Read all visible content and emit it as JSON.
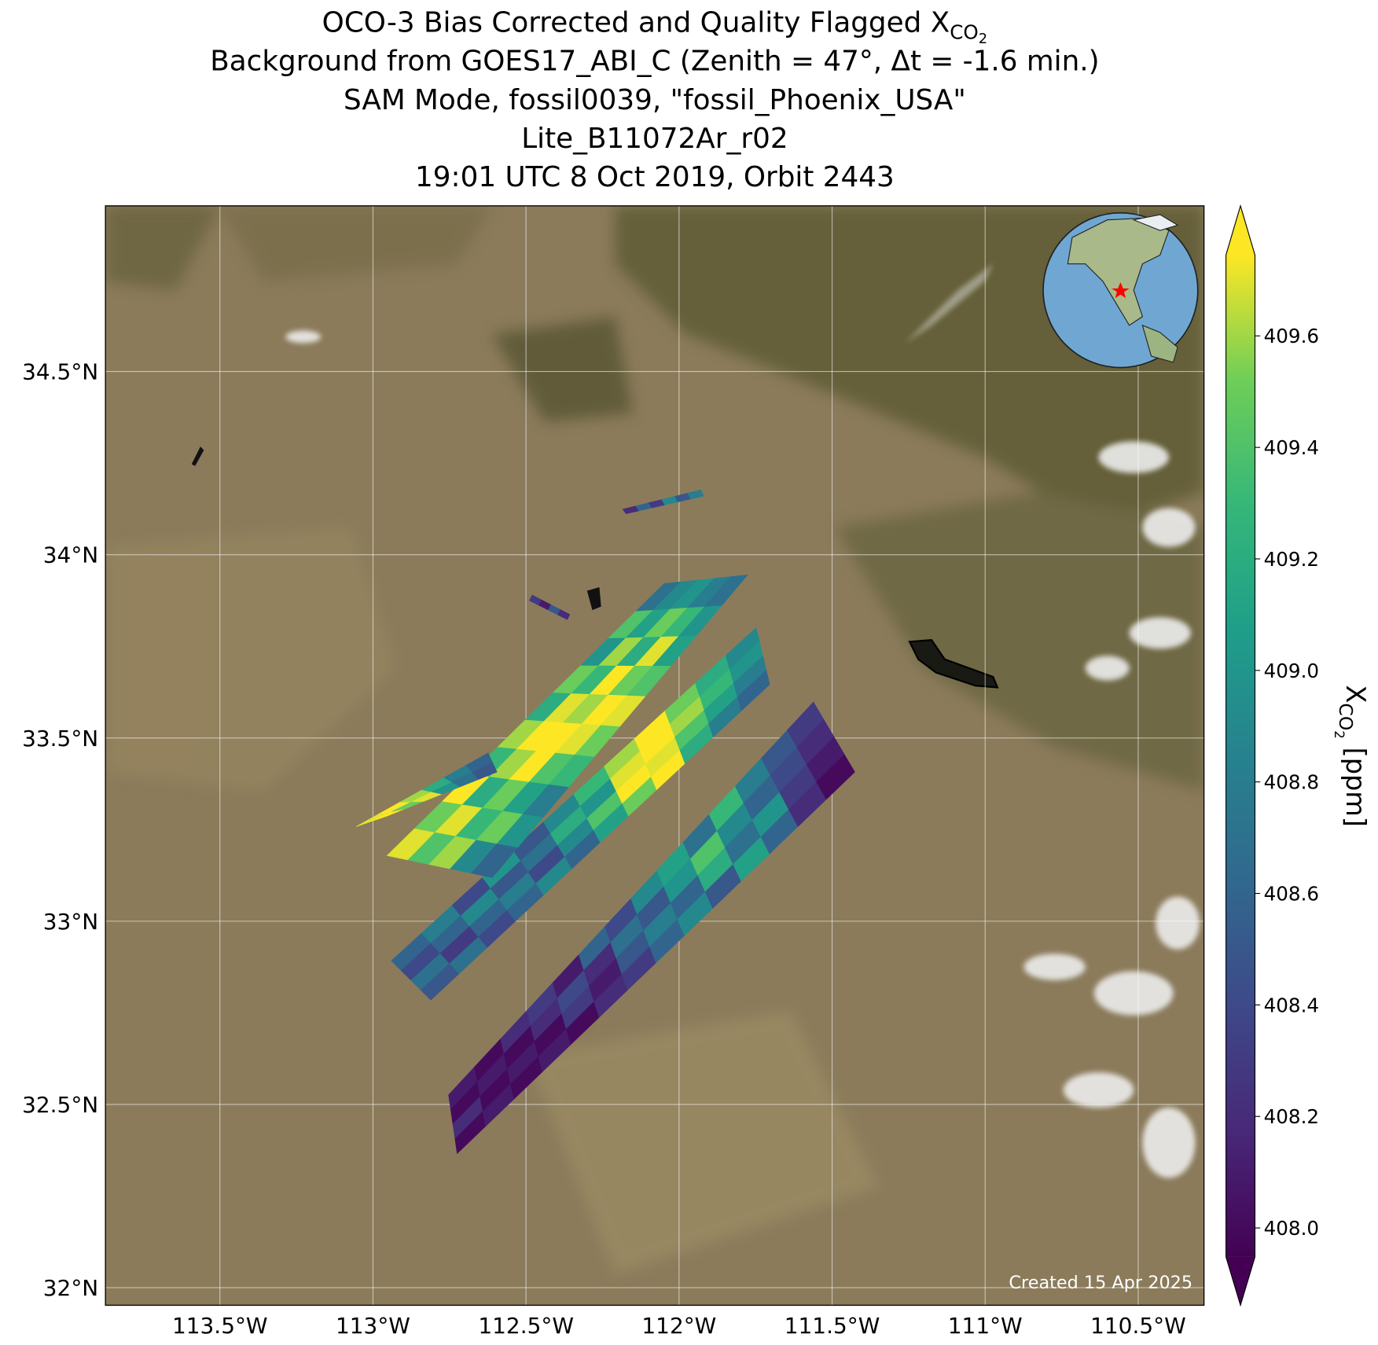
{
  "chart_data": {
    "type": "map",
    "title": [
      "OCO-3 Bias Corrected and Quality Flagged X",
      "Background from GOES17_ABI_C (Zenith = 47°, Δt = -1.6 min.)",
      "SAM Mode, fossil0039, \"fossil_Phoenix_USA\"",
      "Lite_B11072Ar_r02",
      "19:01 UTC 8 Oct 2019, Orbit 2443"
    ],
    "title_subscript": [
      "CO",
      "2"
    ],
    "xlim": [
      -113.874,
      -110.285
    ],
    "ylim": [
      31.952,
      34.952
    ],
    "xticks": [
      {
        "value": -113.5,
        "label": "113.5°W"
      },
      {
        "value": -113,
        "label": "113°W"
      },
      {
        "value": -112.5,
        "label": "112.5°W"
      },
      {
        "value": -112,
        "label": "112°W"
      },
      {
        "value": -111.5,
        "label": "111.5°W"
      },
      {
        "value": -111,
        "label": "111°W"
      },
      {
        "value": -110.5,
        "label": "110.5°W"
      }
    ],
    "yticks": [
      {
        "value": 32,
        "label": "32°N"
      },
      {
        "value": 32.5,
        "label": "32.5°N"
      },
      {
        "value": 33,
        "label": "33°N"
      },
      {
        "value": 33.5,
        "label": "33.5°N"
      },
      {
        "value": 34,
        "label": "34°N"
      },
      {
        "value": 34.5,
        "label": "34.5°N"
      }
    ],
    "grid": true,
    "colormap": "viridis",
    "clim": [
      407.948,
      409.745
    ],
    "colorbar_ticks": [
      {
        "value": 408.0,
        "label": "408.0"
      },
      {
        "value": 408.2,
        "label": "408.2"
      },
      {
        "value": 408.4,
        "label": "408.4"
      },
      {
        "value": 408.6,
        "label": "408.6"
      },
      {
        "value": 408.8,
        "label": "408.8"
      },
      {
        "value": 409.0,
        "label": "409.0"
      },
      {
        "value": 409.2,
        "label": "409.2"
      },
      {
        "value": 409.4,
        "label": "409.4"
      },
      {
        "value": 409.6,
        "label": "409.6"
      }
    ],
    "colorbar_label": {
      "text": "X",
      "subscript": [
        "CO",
        "2"
      ],
      "suffix": " [ppm]"
    },
    "swaths": [
      {
        "corners": [
          [
            -112.753,
            32.526
          ],
          [
            -111.561,
            33.598
          ],
          [
            -111.426,
            33.407
          ],
          [
            -112.725,
            32.366
          ]
        ],
        "values": [
          [
            408.1,
            408.0,
            408.2,
            408.3,
            408.1,
            408.6,
            408.4,
            408.9,
            409.1,
            408.7,
            409.3,
            408.8,
            408.5,
            408.3
          ],
          [
            408.0,
            408.1,
            408.0,
            408.2,
            408.4,
            408.2,
            408.7,
            408.5,
            409.0,
            409.4,
            408.9,
            408.6,
            408.4,
            408.2
          ],
          [
            408.2,
            408.0,
            408.1,
            408.0,
            408.3,
            408.1,
            408.5,
            408.8,
            408.6,
            409.2,
            408.7,
            409.0,
            408.3,
            408.1
          ],
          [
            408.0,
            408.1,
            408.0,
            408.1,
            408.0,
            408.2,
            408.3,
            408.6,
            408.9,
            408.5,
            409.1,
            408.6,
            408.2,
            408.0
          ]
        ]
      },
      {
        "corners": [
          [
            -112.94,
            32.892
          ],
          [
            -111.748,
            33.801
          ],
          [
            -111.704,
            33.646
          ],
          [
            -112.811,
            32.785
          ]
        ],
        "values": [
          [
            408.6,
            408.8,
            408.4,
            409.0,
            408.5,
            408.9,
            409.3,
            409.6,
            409.8,
            409.5,
            409.2,
            408.9
          ],
          [
            408.4,
            408.6,
            408.9,
            408.5,
            408.7,
            409.2,
            409.0,
            409.7,
            409.8,
            409.6,
            409.3,
            409.0
          ],
          [
            408.7,
            408.3,
            408.6,
            408.8,
            408.4,
            408.9,
            409.4,
            409.8,
            409.7,
            409.4,
            409.1,
            408.8
          ],
          [
            408.5,
            408.7,
            408.4,
            408.6,
            408.9,
            408.6,
            409.1,
            409.5,
            409.8,
            409.2,
            408.8,
            408.6
          ]
        ]
      },
      {
        "corners": [
          [
            -112.954,
            33.179
          ],
          [
            -112.049,
            33.921
          ],
          [
            -111.776,
            33.945
          ],
          [
            -112.61,
            33.119
          ]
        ],
        "values": [
          [
            409.7,
            409.5,
            409.8,
            409.3,
            409.6,
            409.2,
            409.5,
            409.0,
            409.4,
            408.7
          ],
          [
            409.4,
            409.7,
            409.2,
            409.6,
            409.8,
            409.7,
            409.3,
            409.6,
            409.1,
            408.9
          ],
          [
            409.6,
            409.3,
            409.5,
            409.8,
            409.8,
            409.6,
            409.8,
            409.2,
            409.5,
            409.0
          ],
          [
            408.9,
            409.5,
            409.1,
            409.4,
            409.7,
            409.8,
            409.5,
            409.7,
            409.3,
            408.8
          ],
          [
            408.6,
            409.0,
            408.8,
            409.3,
            409.5,
            409.7,
            409.4,
            409.1,
            409.0,
            408.7
          ]
        ]
      },
      {
        "corners": [
          [
            -113.055,
            33.258
          ],
          [
            -112.624,
            33.459
          ],
          [
            -112.595,
            33.407
          ],
          [
            -112.954,
            33.287
          ]
        ],
        "values": [
          [
            409.7,
            409.8,
            409.6,
            409.2,
            408.8,
            408.6
          ],
          [
            409.8,
            409.5,
            409.7,
            409.0,
            408.7,
            408.5
          ]
        ]
      },
      {
        "corners": [
          [
            -112.184,
            34.124
          ],
          [
            -111.929,
            34.177
          ],
          [
            -111.92,
            34.16
          ],
          [
            -112.173,
            34.112
          ]
        ],
        "values": [
          [
            408.2,
            408.6,
            408.3,
            408.9,
            408.5,
            408.8
          ]
        ]
      },
      {
        "corners": [
          [
            -112.48,
            33.89
          ],
          [
            -112.357,
            33.837
          ],
          [
            -112.365,
            33.823
          ],
          [
            -112.489,
            33.875
          ]
        ],
        "values": [
          [
            408.3,
            408.1,
            408.5,
            408.2
          ]
        ]
      }
    ],
    "footnote": "Created 15 Apr 2025"
  }
}
